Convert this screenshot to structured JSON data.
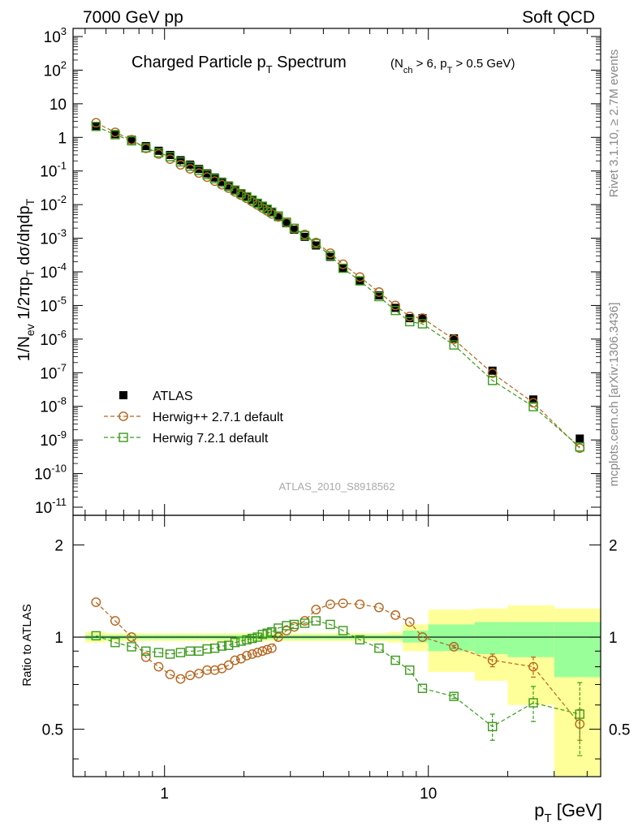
{
  "header": {
    "left": "7000 GeV pp",
    "right": "Soft QCD"
  },
  "side_labels": {
    "rivet": "Rivet 3.1.10, ≥ 2.7M events",
    "mcplots": "mcplots.cern.ch [arXiv:1306.3436]"
  },
  "watermark": "ATLAS_2010_S8918562",
  "colors": {
    "atlas": "#000000",
    "herwigpp": "#b5651d",
    "herwig7": "#3a9a1a",
    "band_yellow": "#ffff99",
    "band_green": "#99ff99"
  },
  "chart_data": [
    {
      "type": "scatter",
      "panel": "main",
      "title": "Charged Particle p_T Spectrum",
      "title_note": "(N_ch > 6, p_T > 0.5 GeV)",
      "ylabel": "1/N_ev 1/2πp_T dσ/dηdp_T",
      "xscale": "log",
      "yscale": "log",
      "xlim": [
        0.45,
        45
      ],
      "ylim": [
        1e-11,
        2000
      ],
      "y_ticks": [
        "10^-11",
        "10^-10",
        "10^-9",
        "10^-8",
        "10^-7",
        "10^-6",
        "10^-5",
        "10^-4",
        "10^-3",
        "10^-2",
        "10^-1",
        "1",
        "10",
        "10^2",
        "10^3"
      ],
      "legend": {
        "position": "bottom-left",
        "entries": [
          "ATLAS",
          "Herwig++ 2.7.1 default",
          "Herwig 7.2.1 default"
        ]
      },
      "x": [
        0.55,
        0.65,
        0.75,
        0.85,
        0.95,
        1.05,
        1.15,
        1.25,
        1.35,
        1.45,
        1.55,
        1.65,
        1.75,
        1.85,
        1.95,
        2.05,
        2.15,
        2.25,
        2.35,
        2.45,
        2.55,
        2.7,
        2.9,
        3.1,
        3.4,
        3.75,
        4.25,
        4.75,
        5.5,
        6.5,
        7.5,
        8.5,
        9.5,
        12.5,
        17.5,
        25,
        37.5
      ],
      "series": [
        {
          "name": "ATLAS",
          "marker": "filled-square",
          "values": [
            2.1,
            1.25,
            0.85,
            0.55,
            0.4,
            0.3,
            0.21,
            0.155,
            0.115,
            0.085,
            0.064,
            0.048,
            0.037,
            0.028,
            0.022,
            0.0175,
            0.0138,
            0.011,
            0.0088,
            0.0071,
            0.0058,
            0.0043,
            0.0028,
            0.0018,
            0.0011,
            0.00061,
            0.00028,
            0.00013,
            5.5e-05,
            2e-05,
            8.5e-06,
            4.2e-06,
            4.2e-06,
            1.05e-06,
            1.15e-07,
            1.6e-08,
            1.1e-09
          ]
        },
        {
          "name": "Herwig++ 2.7.1 default",
          "marker": "open-circle",
          "values": [
            2.72,
            1.41,
            0.85,
            0.47,
            0.32,
            0.226,
            0.153,
            0.116,
            0.087,
            0.066,
            0.05,
            0.039,
            0.031,
            0.024,
            0.019,
            0.0153,
            0.0122,
            0.0098,
            0.0079,
            0.0065,
            0.0053,
            0.0043,
            0.0029,
            0.00195,
            0.0013,
            0.00075,
            0.000358,
            0.000168,
            7e-05,
            2.5e-05,
            1e-05,
            4.7e-06,
            4.2e-06,
            9.8e-07,
            9.7e-08,
            1.28e-08,
            5.7e-10
          ]
        },
        {
          "name": "Herwig 7.2.1 default",
          "marker": "open-square",
          "values": [
            2.12,
            1.2,
            0.79,
            0.49,
            0.35,
            0.267,
            0.187,
            0.139,
            0.104,
            0.078,
            0.059,
            0.045,
            0.035,
            0.027,
            0.021,
            0.0171,
            0.0137,
            0.011,
            0.009,
            0.0073,
            0.006,
            0.0046,
            0.003,
            0.00197,
            0.0012,
            0.00069,
            0.000304,
            0.000128,
            5.4e-05,
            1.84e-05,
            7.1e-06,
            3.3e-06,
            2.85e-06,
            6.7e-07,
            5.9e-08,
            9.8e-09,
            6.2e-10
          ]
        }
      ]
    },
    {
      "type": "line",
      "panel": "ratio",
      "ylabel": "Ratio to ATLAS",
      "xlabel": "p_T  [GeV]",
      "xscale": "log",
      "yscale": "log",
      "xlim": [
        0.45,
        45
      ],
      "ylim": [
        0.35,
        2.5
      ],
      "x_ticks": [
        "1",
        "10"
      ],
      "y_ticks": [
        "0.5",
        "1",
        "2"
      ],
      "x": [
        0.55,
        0.65,
        0.75,
        0.85,
        0.95,
        1.05,
        1.15,
        1.25,
        1.35,
        1.45,
        1.55,
        1.65,
        1.75,
        1.85,
        1.95,
        2.05,
        2.15,
        2.25,
        2.35,
        2.45,
        2.55,
        2.7,
        2.9,
        3.1,
        3.4,
        3.75,
        4.25,
        4.75,
        5.5,
        6.5,
        7.5,
        8.5,
        9.5,
        12.5,
        17.5,
        25,
        37.5
      ],
      "series": [
        {
          "name": "Herwig++ 2.7.1 default",
          "marker": "open-circle",
          "values": [
            1.3,
            1.13,
            1.0,
            0.86,
            0.8,
            0.755,
            0.73,
            0.75,
            0.76,
            0.78,
            0.78,
            0.79,
            0.81,
            0.84,
            0.85,
            0.87,
            0.88,
            0.89,
            0.9,
            0.91,
            0.92,
            1.0,
            1.05,
            1.08,
            1.13,
            1.23,
            1.28,
            1.29,
            1.28,
            1.25,
            1.18,
            1.12,
            1.0,
            0.93,
            0.84,
            0.8,
            0.52
          ],
          "errors": [
            0,
            0,
            0,
            0,
            0,
            0,
            0,
            0,
            0,
            0,
            0,
            0,
            0,
            0,
            0,
            0,
            0,
            0,
            0,
            0,
            0,
            0,
            0,
            0,
            0,
            0,
            0,
            0,
            0,
            0,
            0,
            0,
            0,
            0.01,
            0.04,
            0.06,
            0.06
          ]
        },
        {
          "name": "Herwig 7.2.1 default",
          "marker": "open-square",
          "values": [
            1.01,
            0.96,
            0.93,
            0.9,
            0.89,
            0.88,
            0.89,
            0.9,
            0.9,
            0.915,
            0.92,
            0.935,
            0.94,
            0.96,
            0.97,
            0.98,
            0.99,
            1.0,
            1.02,
            1.03,
            1.04,
            1.07,
            1.09,
            1.1,
            1.11,
            1.13,
            1.1,
            1.05,
            0.98,
            0.92,
            0.84,
            0.78,
            0.68,
            0.64,
            0.51,
            0.61,
            0.56
          ],
          "errors": [
            0,
            0,
            0,
            0,
            0,
            0,
            0,
            0,
            0,
            0,
            0,
            0,
            0,
            0,
            0,
            0,
            0,
            0,
            0,
            0,
            0,
            0,
            0,
            0,
            0,
            0,
            0,
            0,
            0,
            0,
            0,
            0,
            0,
            0.01,
            0.05,
            0.08,
            0.15
          ]
        }
      ],
      "bands": {
        "edges": [
          0.5,
          0.6,
          0.7,
          0.8,
          0.9,
          1,
          1.1,
          1.2,
          1.3,
          1.4,
          1.5,
          1.6,
          1.7,
          1.8,
          1.9,
          2,
          2.1,
          2.2,
          2.3,
          2.4,
          2.5,
          2.6,
          2.8,
          3,
          3.2,
          3.6,
          4,
          4.5,
          5,
          6,
          7,
          8,
          9,
          10,
          15,
          20,
          30,
          45
        ],
        "yellow": [
          [
            0.96,
            1.04
          ],
          [
            0.97,
            1.03
          ],
          [
            0.97,
            1.03
          ],
          [
            0.97,
            1.03
          ],
          [
            0.97,
            1.03
          ],
          [
            0.97,
            1.03
          ],
          [
            0.97,
            1.03
          ],
          [
            0.97,
            1.03
          ],
          [
            0.97,
            1.03
          ],
          [
            0.97,
            1.03
          ],
          [
            0.97,
            1.03
          ],
          [
            0.97,
            1.03
          ],
          [
            0.97,
            1.03
          ],
          [
            0.97,
            1.03
          ],
          [
            0.97,
            1.03
          ],
          [
            0.97,
            1.03
          ],
          [
            0.97,
            1.03
          ],
          [
            0.97,
            1.03
          ],
          [
            0.97,
            1.03
          ],
          [
            0.97,
            1.03
          ],
          [
            0.97,
            1.03
          ],
          [
            0.97,
            1.03
          ],
          [
            0.97,
            1.03
          ],
          [
            0.97,
            1.03
          ],
          [
            0.97,
            1.03
          ],
          [
            0.97,
            1.03
          ],
          [
            0.97,
            1.03
          ],
          [
            0.97,
            1.03
          ],
          [
            0.97,
            1.03
          ],
          [
            0.97,
            1.03
          ],
          [
            0.96,
            1.04
          ],
          [
            0.9,
            1.1
          ],
          [
            0.9,
            1.1
          ],
          [
            0.77,
            1.23
          ],
          [
            0.72,
            1.24
          ],
          [
            0.6,
            1.27
          ],
          [
            0.35,
            1.24
          ]
        ],
        "green": [
          [
            0.985,
            1.015
          ],
          [
            0.985,
            1.015
          ],
          [
            0.985,
            1.015
          ],
          [
            0.985,
            1.015
          ],
          [
            0.985,
            1.015
          ],
          [
            0.985,
            1.015
          ],
          [
            0.985,
            1.015
          ],
          [
            0.985,
            1.015
          ],
          [
            0.985,
            1.015
          ],
          [
            0.985,
            1.015
          ],
          [
            0.985,
            1.015
          ],
          [
            0.985,
            1.015
          ],
          [
            0.985,
            1.015
          ],
          [
            0.985,
            1.015
          ],
          [
            0.985,
            1.015
          ],
          [
            0.985,
            1.015
          ],
          [
            0.985,
            1.015
          ],
          [
            0.985,
            1.015
          ],
          [
            0.985,
            1.015
          ],
          [
            0.985,
            1.015
          ],
          [
            0.985,
            1.015
          ],
          [
            0.985,
            1.015
          ],
          [
            0.985,
            1.015
          ],
          [
            0.985,
            1.015
          ],
          [
            0.985,
            1.015
          ],
          [
            0.985,
            1.015
          ],
          [
            0.985,
            1.015
          ],
          [
            0.985,
            1.015
          ],
          [
            0.985,
            1.015
          ],
          [
            0.985,
            1.015
          ],
          [
            0.985,
            1.015
          ],
          [
            0.96,
            1.05
          ],
          [
            0.96,
            1.05
          ],
          [
            0.9,
            1.1
          ],
          [
            0.88,
            1.12
          ],
          [
            0.86,
            1.12
          ],
          [
            0.74,
            1.12
          ]
        ]
      }
    }
  ]
}
